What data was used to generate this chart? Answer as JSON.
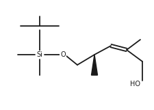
{
  "bg_color": "#ffffff",
  "line_color": "#1a1a1a",
  "line_width": 1.3,
  "fig_width": 2.26,
  "fig_height": 1.61,
  "dpi": 100,
  "si_label": "Si",
  "o_label": "O",
  "ho_label": "HO",
  "font_size_labels": 7.0
}
